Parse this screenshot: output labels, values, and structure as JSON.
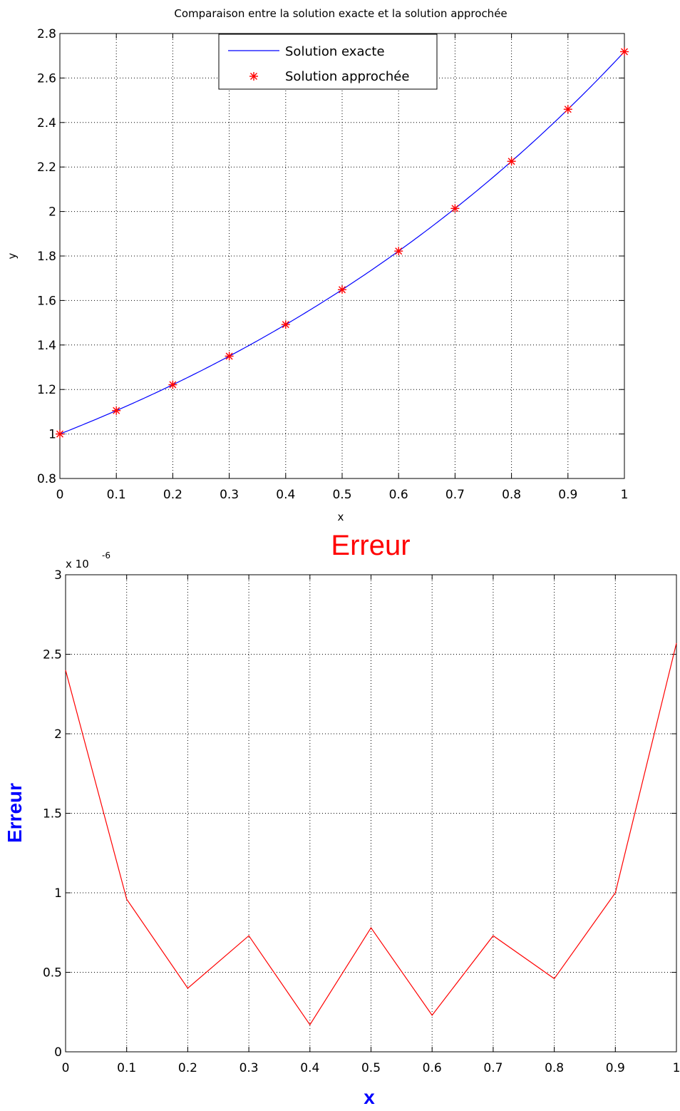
{
  "chart_data": [
    {
      "type": "line",
      "title": "Comparaison entre la solution exacte et la solution approchée",
      "xlabel": "x",
      "ylabel": "y",
      "xlim": [
        0,
        1
      ],
      "ylim": [
        0.8,
        2.8
      ],
      "xticks": [
        "0",
        "0.1",
        "0.2",
        "0.3",
        "0.4",
        "0.5",
        "0.6",
        "0.7",
        "0.8",
        "0.9",
        "1"
      ],
      "yticks": [
        "0.8",
        "1",
        "1.2",
        "1.4",
        "1.6",
        "1.8",
        "2",
        "2.2",
        "2.4",
        "2.6",
        "2.8"
      ],
      "grid": true,
      "legend_position": "top-center",
      "series": [
        {
          "name": "Solution exacte",
          "style": "line",
          "color": "#0000ff",
          "x": [
            0,
            0.1,
            0.2,
            0.3,
            0.4,
            0.5,
            0.6,
            0.7,
            0.8,
            0.9,
            1
          ],
          "y": [
            1,
            1.10517,
            1.2214,
            1.34986,
            1.49182,
            1.64872,
            1.82212,
            2.01375,
            2.22554,
            2.4596,
            2.71828
          ]
        },
        {
          "name": "Solution approchée",
          "style": "marker",
          "marker": "*",
          "color": "#ff0000",
          "x": [
            0,
            0.1,
            0.2,
            0.3,
            0.4,
            0.5,
            0.6,
            0.7,
            0.8,
            0.9,
            1
          ],
          "y": [
            1,
            1.10517,
            1.2214,
            1.34986,
            1.49182,
            1.64872,
            1.82212,
            2.01375,
            2.22554,
            2.4596,
            2.71828
          ]
        }
      ]
    },
    {
      "type": "line",
      "title": "Erreur",
      "title_color": "#ff0000",
      "xlabel": "x",
      "ylabel": "Erreur",
      "label_color": "#0000ff",
      "xlim": [
        0,
        1
      ],
      "ylim": [
        0,
        3
      ],
      "scale_multiplier": "x 10",
      "scale_exponent": "-6",
      "xticks": [
        "0",
        "0.1",
        "0.2",
        "0.3",
        "0.4",
        "0.5",
        "0.6",
        "0.7",
        "0.8",
        "0.9",
        "1"
      ],
      "yticks": [
        "0",
        "0.5",
        "1",
        "1.5",
        "2",
        "2.5",
        "3"
      ],
      "grid": true,
      "series": [
        {
          "color": "#ff0000",
          "x": [
            0,
            0.1,
            0.2,
            0.3,
            0.4,
            0.5,
            0.6,
            0.7,
            0.8,
            0.9,
            1
          ],
          "y": [
            2.4,
            0.96,
            0.4,
            0.73,
            0.17,
            0.78,
            0.23,
            0.73,
            0.46,
            1.0,
            2.57
          ]
        }
      ]
    }
  ]
}
